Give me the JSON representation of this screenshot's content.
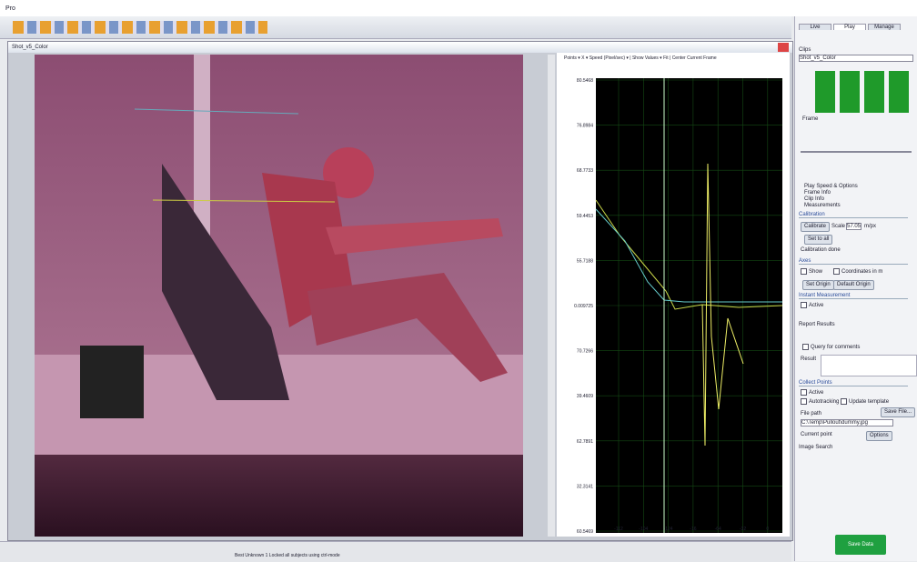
{
  "app": {
    "title": "Pro"
  },
  "window": {
    "title": "Shot_v5_Color"
  },
  "plot": {
    "header": "Points ▾ X ▾ Speed (Pixel/sec) ▾ | Show Values ▾ Fit | Center Current Frame",
    "y_labels": [
      "80.5468",
      "76.8984",
      "68.7733",
      "59.4453",
      "55.7188",
      "0.009725",
      "70.7266",
      "39.4609",
      "62.7891",
      "32.3141",
      "60.5469"
    ],
    "x_labels": [
      "-112",
      "-104",
      "-124",
      "-16",
      "-64",
      "-32",
      "0"
    ]
  },
  "panel": {
    "tabs": [
      "Live",
      "Play",
      "Manage"
    ],
    "clips_label": "Clips",
    "clip": "Shot_v5_Color",
    "frame_label": "Frame",
    "sections": [
      "Play Speed & Options",
      "Frame Info",
      "Clip Info",
      "Measurements"
    ],
    "calibration": {
      "title": "Calibration",
      "button": "Calibrate",
      "scale_label": "Scale",
      "scale_value": "57.05",
      "unit": "m/px",
      "set_all": "Set to all",
      "status": "Calibration done"
    },
    "axes": {
      "title": "Axes",
      "show": "Show",
      "coords": "Coordinates in m",
      "set_origin": "Set Origin",
      "default_origin": "Default Origin"
    },
    "instant": {
      "title": "Instant Measurement",
      "active": "Active"
    },
    "report": "Report Results",
    "query": "Query for comments",
    "result": "Result",
    "collect": {
      "title": "Collect Points",
      "active": "Active",
      "autotracking": "Autotracking",
      "update": "Update template",
      "file_path": "File path",
      "save_file": "Save File...",
      "path": "C:\\Temp\\Pullout\\dummy.jpg",
      "current_point": "Current point",
      "options": "Options"
    },
    "image_search": "Image Search",
    "save_button": "Save Data"
  },
  "status": {
    "text": "Best Unknown 1 Locked all subjects using ctrl-mode"
  }
}
